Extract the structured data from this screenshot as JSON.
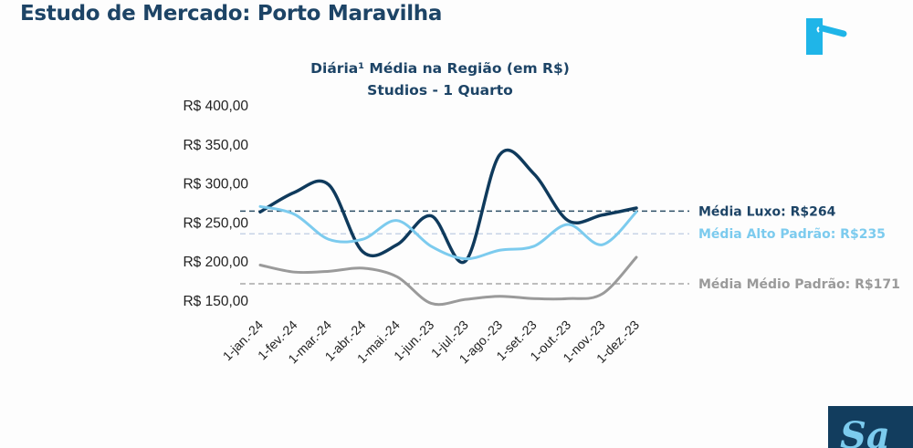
{
  "slide_title": "Estudo de Mercado: Porto Maravilha",
  "chart_data": {
    "type": "line",
    "title": "Diária¹ Média na Região (em R$)",
    "subtitle": "Studios - 1 Quarto",
    "categories": [
      "1-jan.-24",
      "1-fev.-24",
      "1-mar.-24",
      "1-abr.-24",
      "1-mai.-24",
      "1-jun.-23",
      "1-jul.-23",
      "1-ago.-23",
      "1-set.-23",
      "1-out.-23",
      "1-nov.-23",
      "1-dez.-23"
    ],
    "y_ticks": [
      "R$ 150,00",
      "R$ 200,00",
      "R$ 250,00",
      "R$ 300,00",
      "R$ 350,00",
      "R$ 400,00"
    ],
    "ylim": [
      150,
      400
    ],
    "grid": false,
    "series": [
      {
        "color": "#0f3a5c",
        "values": [
          263,
          288,
          298,
          212,
          221,
          258,
          200,
          336,
          312,
          252,
          259,
          268
        ]
      },
      {
        "color": "#7ccbee",
        "values": [
          270,
          260,
          228,
          228,
          252,
          219,
          203,
          214,
          219,
          247,
          221,
          263
        ]
      },
      {
        "color": "#9a9a9a",
        "values": [
          195,
          186,
          187,
          191,
          180,
          146,
          151,
          155,
          152,
          152,
          158,
          205
        ]
      }
    ],
    "reference_lines": [
      {
        "label": "Média Luxo: R$264",
        "value": 264,
        "color": "#1d4466",
        "line_color": "#2e4f66"
      },
      {
        "label": "Média Alto Padrão: R$235",
        "value": 235,
        "color": "#7ccbee",
        "line_color": "#c7d3e6"
      },
      {
        "label": "Média Médio Padrão: R$171",
        "value": 171,
        "color": "#9a9a9a",
        "line_color": "#a8a8a8"
      }
    ]
  },
  "logos": {
    "top_right": "door-handle-logo",
    "bottom_right": "SA logo"
  },
  "colors": {
    "title": "#1d4466",
    "logo_top": "#1fb5e8",
    "logo_bottom_bg": "#123d5e",
    "logo_bottom_fg": "#7ccbee"
  }
}
